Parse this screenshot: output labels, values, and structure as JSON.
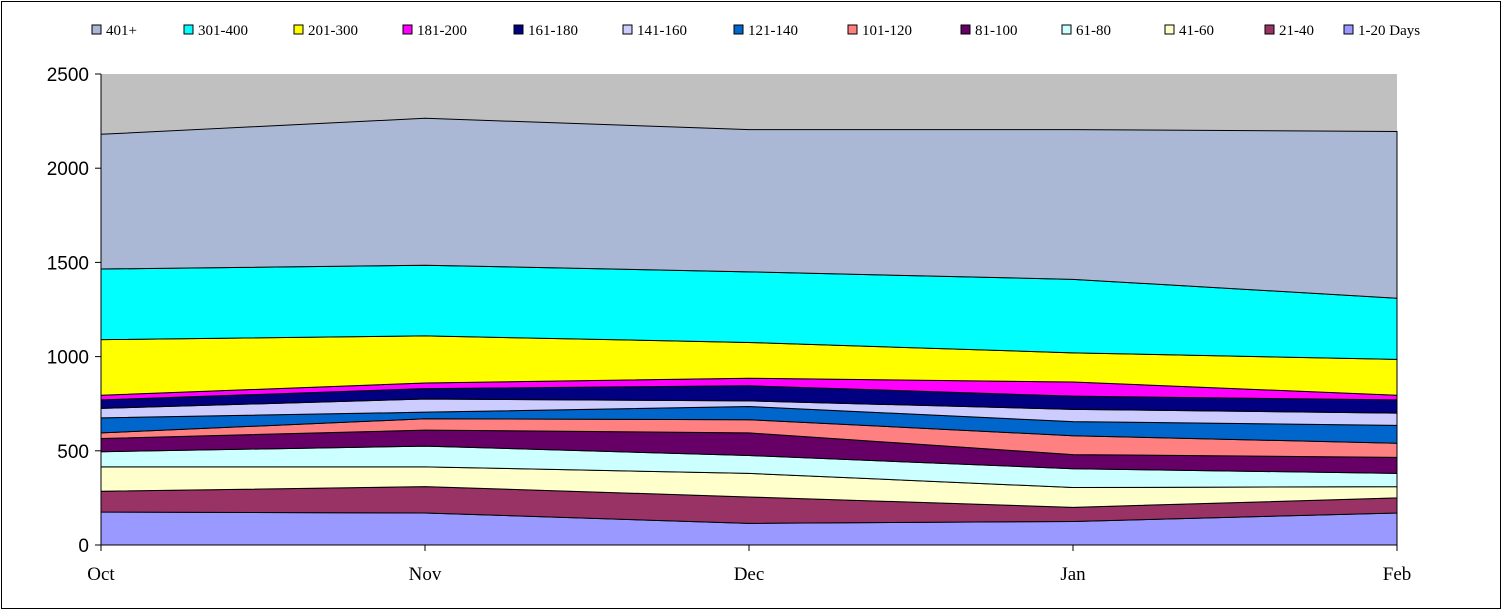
{
  "chart_data": {
    "type": "area",
    "stacked": true,
    "categories": [
      "Oct",
      "Nov",
      "Dec",
      "Jan",
      "Feb"
    ],
    "ylim": [
      0,
      2500
    ],
    "yticks": [
      0,
      500,
      1000,
      1500,
      2000,
      2500
    ],
    "grid": false,
    "legend_position": "top",
    "series": [
      {
        "name": "1-20 Days",
        "color": "#9999ff",
        "values": [
          175,
          170,
          115,
          125,
          170
        ]
      },
      {
        "name": "21-40",
        "color": "#993366",
        "values": [
          110,
          140,
          140,
          75,
          80
        ]
      },
      {
        "name": "41-60",
        "color": "#ffffcc",
        "values": [
          130,
          105,
          125,
          105,
          60
        ]
      },
      {
        "name": "61-80",
        "color": "#ccffff",
        "values": [
          80,
          110,
          95,
          100,
          70
        ]
      },
      {
        "name": "81-100",
        "color": "#660066",
        "values": [
          70,
          85,
          120,
          75,
          85
        ]
      },
      {
        "name": "101-120",
        "color": "#ff8080",
        "values": [
          30,
          60,
          70,
          100,
          75
        ]
      },
      {
        "name": "121-140",
        "color": "#0066cc",
        "values": [
          80,
          35,
          70,
          75,
          95
        ]
      },
      {
        "name": "141-160",
        "color": "#ccccff",
        "values": [
          50,
          70,
          30,
          65,
          65
        ]
      },
      {
        "name": "161-180",
        "color": "#000080",
        "values": [
          45,
          55,
          80,
          70,
          70
        ]
      },
      {
        "name": "181-200",
        "color": "#ff00ff",
        "values": [
          25,
          30,
          40,
          75,
          25
        ]
      },
      {
        "name": "201-300",
        "color": "#ffff00",
        "values": [
          295,
          250,
          190,
          155,
          190
        ]
      },
      {
        "name": "301-400",
        "color": "#00ffff",
        "values": [
          375,
          375,
          375,
          390,
          325
        ]
      },
      {
        "name": "401+",
        "color": "#aab8d6",
        "values": [
          715,
          780,
          755,
          795,
          885
        ]
      }
    ],
    "background_top_color": "#c0c0c0",
    "legend_order": [
      "401+",
      "301-400",
      "201-300",
      "181-200",
      "161-180",
      "141-160",
      "121-140",
      "101-120",
      "81-100",
      "61-80",
      "41-60",
      "21-40",
      "1-20 Days"
    ]
  }
}
